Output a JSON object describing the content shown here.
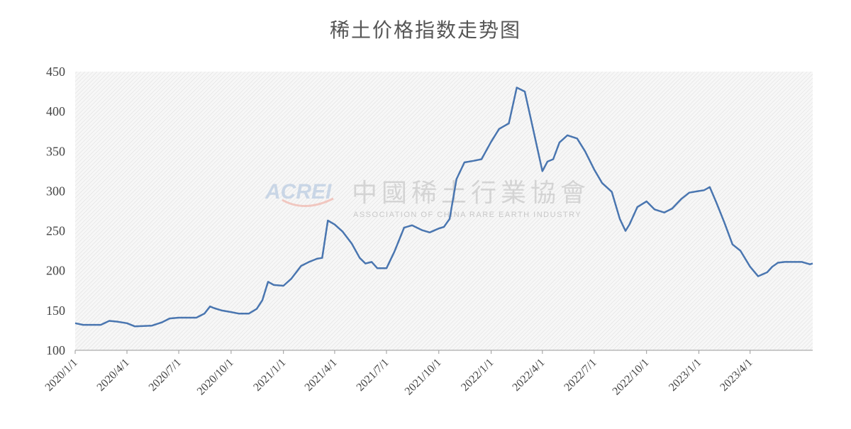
{
  "chart_data": {
    "type": "line",
    "title": "稀土价格指数走势图",
    "xlabel": "",
    "ylabel": "",
    "ylim": [
      100,
      450
    ],
    "yticks": [
      100,
      150,
      200,
      250,
      300,
      350,
      400,
      450
    ],
    "xticks": [
      "2020/1/1",
      "2020/4/1",
      "2020/7/1",
      "2020/10/1",
      "2021/1/1",
      "2021/4/1",
      "2021/7/1",
      "2021/10/1",
      "2022/1/1",
      "2022/4/1",
      "2022/7/1",
      "2022/10/1",
      "2023/1/1",
      "2023/4/1"
    ],
    "xlim": [
      "2020/1/1",
      "2023/7/20"
    ],
    "grid": false,
    "legend": "none",
    "line_color": "#4a76b0",
    "watermark": {
      "logo": "ACREI",
      "name_cn": "中國稀土行業協會",
      "name_en": "ASSOCIATION OF CHINA RARE EARTH INDUSTRY"
    },
    "series": [
      {
        "x": [
          "2020/1/1",
          "2020/1/15",
          "2020/2/15",
          "2020/3/1",
          "2020/3/15",
          "2020/4/1",
          "2020/4/15",
          "2020/5/15",
          "2020/6/1",
          "2020/6/15",
          "2020/7/1",
          "2020/7/15",
          "2020/8/1",
          "2020/8/15",
          "2020/8/25",
          "2020/9/1",
          "2020/9/15",
          "2020/10/1",
          "2020/10/15",
          "2020/11/1",
          "2020/11/15",
          "2020/11/25",
          "2020/12/5",
          "2020/12/15",
          "2021/1/1",
          "2021/1/15",
          "2021/2/1",
          "2021/2/15",
          "2021/3/1",
          "2021/3/10",
          "2021/3/20",
          "2021/4/1",
          "2021/4/15",
          "2021/5/1",
          "2021/5/15",
          "2021/5/25",
          "2021/6/5",
          "2021/6/15",
          "2021/7/1",
          "2021/7/15",
          "2021/8/1",
          "2021/8/15",
          "2021/9/1",
          "2021/9/15",
          "2021/10/1",
          "2021/10/10",
          "2021/10/20",
          "2021/11/1",
          "2021/11/15",
          "2021/12/1",
          "2021/12/15",
          "2022/1/1",
          "2022/1/15",
          "2022/2/1",
          "2022/2/15",
          "2022/3/1",
          "2022/3/15",
          "2022/4/1",
          "2022/4/10",
          "2022/4/20",
          "2022/5/1",
          "2022/5/15",
          "2022/6/1",
          "2022/6/15",
          "2022/7/1",
          "2022/7/15",
          "2022/8/1",
          "2022/8/15",
          "2022/8/25",
          "2022/9/1",
          "2022/9/15",
          "2022/10/1",
          "2022/10/15",
          "2022/11/1",
          "2022/11/15",
          "2022/12/1",
          "2022/12/15",
          "2023/1/1",
          "2023/1/10",
          "2023/1/20",
          "2023/2/1",
          "2023/2/15",
          "2023/3/1",
          "2023/3/15",
          "2023/4/1",
          "2023/4/15",
          "2023/5/1",
          "2023/5/10",
          "2023/5/20",
          "2023/6/1",
          "2023/6/15",
          "2023/7/1",
          "2023/7/15",
          "2023/7/20"
        ],
        "y": [
          134,
          132,
          132,
          137,
          136,
          134,
          130,
          131,
          135,
          140,
          141,
          141,
          141,
          146,
          155,
          153,
          150,
          148,
          146,
          146,
          152,
          163,
          186,
          182,
          181,
          190,
          206,
          211,
          215,
          216,
          263,
          258,
          249,
          234,
          216,
          209,
          211,
          203,
          203,
          224,
          254,
          257,
          251,
          248,
          253,
          255,
          265,
          315,
          336,
          338,
          340,
          362,
          378,
          385,
          430,
          425,
          380,
          325,
          337,
          340,
          361,
          370,
          366,
          350,
          327,
          310,
          299,
          265,
          250,
          258,
          280,
          287,
          277,
          273,
          278,
          290,
          298,
          300,
          301,
          305,
          285,
          260,
          233,
          225,
          205,
          193,
          198,
          205,
          210,
          211,
          211,
          211,
          208,
          209
        ]
      }
    ]
  }
}
